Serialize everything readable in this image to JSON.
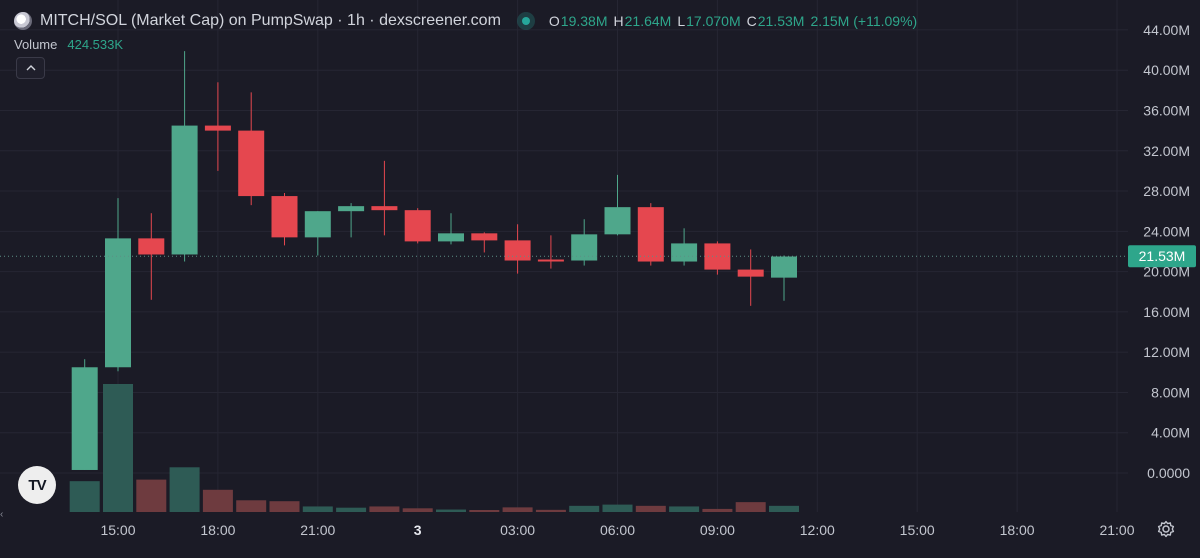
{
  "header": {
    "title": "MITCH/SOL (Market Cap) on PumpSwap · 1h · dexscreener.com",
    "ohlc": {
      "o_label": "O",
      "o_value": "19.38M",
      "h_label": "H",
      "h_value": "21.64M",
      "l_label": "L",
      "l_value": "17.070M",
      "c_label": "C",
      "c_value": "21.53M",
      "change": "2.15M (+11.09%)"
    }
  },
  "volume": {
    "label": "Volume",
    "value": "424.533K"
  },
  "icons": {
    "collapse": "chevron-up-icon",
    "logo": "tradingview-logo",
    "settings": "gear-icon",
    "status": "live-dot-icon",
    "token": "token-logo-icon"
  },
  "tv_logo_text": "TV",
  "colors": {
    "background": "#1b1b26",
    "up": "#4fa78b",
    "down": "#e5474f",
    "up_volume": "#2e5b55",
    "down_volume": "#6e3b3f",
    "price_label_bg": "#2ea68b",
    "grid": "#262633",
    "axis_text": "#c3c6cf"
  },
  "chart_data": {
    "type": "candlestick",
    "title": "MITCH/SOL (Market Cap) on PumpSwap · 1h · dexscreener.com",
    "y_axis": {
      "ticks": [
        "44.00M",
        "40.00M",
        "36.00M",
        "32.00M",
        "28.00M",
        "24.00M",
        "20.00M",
        "16.00M",
        "12.00M",
        "8.00M",
        "4.00M",
        "0.0000"
      ],
      "tick_values": [
        44,
        40,
        36,
        32,
        28,
        24,
        20,
        16,
        12,
        8,
        4,
        0
      ],
      "unit": "M",
      "ylim": [
        -4,
        46
      ]
    },
    "x_axis": {
      "ticks": [
        "15:00",
        "18:00",
        "21:00",
        "3",
        "03:00",
        "06:00",
        "09:00",
        "12:00",
        "15:00",
        "18:00",
        "21:00"
      ],
      "tick_hours": [
        0,
        3,
        6,
        9,
        12,
        15,
        18,
        21,
        24,
        27,
        30
      ],
      "bold_ticks": [
        "3"
      ]
    },
    "current_price": {
      "label": "21.53M",
      "value": 21.53
    },
    "candles": [
      {
        "t": -1,
        "o": 0.3,
        "h": 11.3,
        "l": 0.3,
        "c": 10.5
      },
      {
        "t": 0,
        "o": 10.5,
        "h": 27.3,
        "l": 10.1,
        "c": 23.3
      },
      {
        "t": 1,
        "o": 23.3,
        "h": 25.8,
        "l": 17.2,
        "c": 21.7
      },
      {
        "t": 2,
        "o": 21.7,
        "h": 41.9,
        "l": 21.0,
        "c": 34.5
      },
      {
        "t": 3,
        "o": 34.5,
        "h": 38.8,
        "l": 30.0,
        "c": 34.0
      },
      {
        "t": 4,
        "o": 34.0,
        "h": 37.8,
        "l": 26.6,
        "c": 27.5
      },
      {
        "t": 5,
        "o": 27.5,
        "h": 27.8,
        "l": 22.6,
        "c": 23.4
      },
      {
        "t": 6,
        "o": 23.4,
        "h": 26.0,
        "l": 21.6,
        "c": 26.0
      },
      {
        "t": 7,
        "o": 26.0,
        "h": 26.8,
        "l": 23.4,
        "c": 26.5
      },
      {
        "t": 8,
        "o": 26.5,
        "h": 31.0,
        "l": 23.6,
        "c": 26.1
      },
      {
        "t": 9,
        "o": 26.1,
        "h": 26.3,
        "l": 22.8,
        "c": 23.0
      },
      {
        "t": 10,
        "o": 23.0,
        "h": 25.8,
        "l": 22.7,
        "c": 23.8
      },
      {
        "t": 11,
        "o": 23.8,
        "h": 23.9,
        "l": 21.9,
        "c": 23.1
      },
      {
        "t": 12,
        "o": 23.1,
        "h": 24.7,
        "l": 19.8,
        "c": 21.1
      },
      {
        "t": 13,
        "o": 21.2,
        "h": 23.6,
        "l": 20.3,
        "c": 21.1
      },
      {
        "t": 14,
        "o": 21.1,
        "h": 25.2,
        "l": 20.6,
        "c": 23.7
      },
      {
        "t": 15,
        "o": 23.7,
        "h": 29.6,
        "l": 23.6,
        "c": 26.4
      },
      {
        "t": 16,
        "o": 26.4,
        "h": 26.8,
        "l": 20.6,
        "c": 21.0
      },
      {
        "t": 17,
        "o": 21.0,
        "h": 24.3,
        "l": 20.6,
        "c": 22.8
      },
      {
        "t": 18,
        "o": 22.8,
        "h": 23.0,
        "l": 19.7,
        "c": 20.2
      },
      {
        "t": 19,
        "o": 20.2,
        "h": 22.2,
        "l": 16.6,
        "c": 19.5
      },
      {
        "t": 20,
        "o": 19.4,
        "h": 21.6,
        "l": 17.1,
        "c": 21.5
      }
    ],
    "volume": [
      {
        "t": -1,
        "v": 1.0,
        "dir": "up"
      },
      {
        "t": 0,
        "v": 4.15,
        "dir": "up"
      },
      {
        "t": 1,
        "v": 1.05,
        "dir": "down"
      },
      {
        "t": 2,
        "v": 1.45,
        "dir": "up"
      },
      {
        "t": 3,
        "v": 0.72,
        "dir": "down"
      },
      {
        "t": 4,
        "v": 0.38,
        "dir": "down"
      },
      {
        "t": 5,
        "v": 0.35,
        "dir": "down"
      },
      {
        "t": 6,
        "v": 0.18,
        "dir": "up"
      },
      {
        "t": 7,
        "v": 0.14,
        "dir": "up"
      },
      {
        "t": 8,
        "v": 0.18,
        "dir": "down"
      },
      {
        "t": 9,
        "v": 0.12,
        "dir": "down"
      },
      {
        "t": 10,
        "v": 0.08,
        "dir": "up"
      },
      {
        "t": 11,
        "v": 0.06,
        "dir": "down"
      },
      {
        "t": 12,
        "v": 0.15,
        "dir": "down"
      },
      {
        "t": 13,
        "v": 0.07,
        "dir": "down"
      },
      {
        "t": 14,
        "v": 0.2,
        "dir": "up"
      },
      {
        "t": 15,
        "v": 0.24,
        "dir": "up"
      },
      {
        "t": 16,
        "v": 0.2,
        "dir": "down"
      },
      {
        "t": 17,
        "v": 0.18,
        "dir": "up"
      },
      {
        "t": 18,
        "v": 0.1,
        "dir": "down"
      },
      {
        "t": 19,
        "v": 0.32,
        "dir": "down"
      },
      {
        "t": 20,
        "v": 0.2,
        "dir": "up"
      }
    ],
    "grid": true
  }
}
